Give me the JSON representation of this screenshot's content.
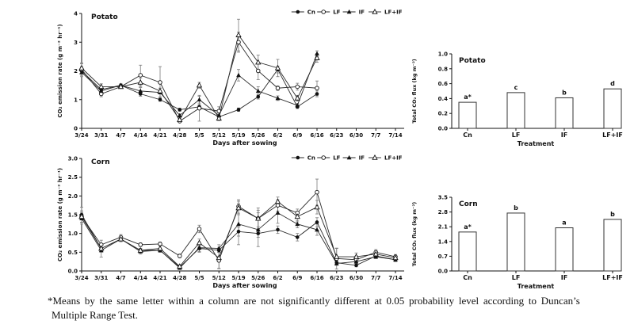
{
  "colors": {
    "background": "#ffffff",
    "text": "#111111",
    "axis": "#111111",
    "series_line": "#2a2a2a",
    "marker": "#111111",
    "error_bar": "#7a7a7a",
    "bar_fill": "#ffffff",
    "bar_stroke": "#333333"
  },
  "legend_items": [
    {
      "label": "Cn",
      "marker": "filled-circle"
    },
    {
      "label": "LF",
      "marker": "open-circle"
    },
    {
      "label": "IF",
      "marker": "filled-triangle"
    },
    {
      "label": "LF+IF",
      "marker": "open-triangle"
    }
  ],
  "footnote": {
    "line1": "*Means by the same letter within a column are not significantly different at 0.05 probability level according to Duncan’s",
    "line2": "Multiple Range Test."
  },
  "chart_data": [
    {
      "id": "potato-line",
      "type": "line",
      "title": "Potato",
      "xlabel": "Days after sowing",
      "ylabel": "CO₂ emission rate (g m⁻² hr⁻¹)",
      "ylim": [
        0,
        4
      ],
      "ytick_values": [
        0,
        1,
        2,
        3,
        4
      ],
      "ytick_labels": [
        "0",
        "1",
        "2",
        "3",
        "4"
      ],
      "categories": [
        "3/24",
        "3/31",
        "4/7",
        "4/14",
        "4/21",
        "4/28",
        "5/5",
        "5/12",
        "5/19",
        "5/26",
        "6/2",
        "6/9",
        "6/16",
        "6/23",
        "6/30",
        "7/7",
        "7/14"
      ],
      "legend_position": "top-right",
      "grid": false,
      "series": [
        {
          "name": "Cn",
          "marker": "filled-circle",
          "values": [
            2.0,
            1.35,
            1.5,
            1.2,
            1.0,
            0.65,
            0.75,
            0.4,
            0.65,
            1.1,
            2.05,
            0.75,
            1.2
          ],
          "errors": [
            0.15,
            0.08,
            0.05,
            0.08,
            0.06,
            0.05,
            0.08,
            0.05,
            0.06,
            0.08,
            0.12,
            0.06,
            0.1
          ]
        },
        {
          "name": "LF",
          "marker": "open-circle",
          "values": [
            2.05,
            1.2,
            1.45,
            1.85,
            1.6,
            0.25,
            0.7,
            0.6,
            3.0,
            2.0,
            1.4,
            1.45,
            1.4
          ],
          "errors": [
            0.2,
            0.1,
            0.05,
            0.35,
            0.55,
            0.05,
            0.45,
            0.15,
            0.35,
            0.3,
            0.08,
            0.12,
            0.25
          ]
        },
        {
          "name": "IF",
          "marker": "filled-triangle",
          "values": [
            1.95,
            1.3,
            1.5,
            1.3,
            1.25,
            0.45,
            1.0,
            0.45,
            1.85,
            1.3,
            1.05,
            0.8,
            2.6
          ],
          "errors": [
            0.15,
            0.08,
            0.05,
            0.12,
            0.15,
            0.05,
            0.12,
            0.1,
            0.2,
            0.15,
            0.08,
            0.06,
            0.1
          ]
        },
        {
          "name": "LF+IF",
          "marker": "open-triangle",
          "values": [
            2.1,
            1.45,
            1.45,
            1.6,
            1.3,
            0.3,
            1.5,
            0.35,
            3.25,
            2.3,
            2.1,
            1.05,
            2.45
          ],
          "errors": [
            0.18,
            0.1,
            0.05,
            0.15,
            0.1,
            0.05,
            0.1,
            0.08,
            0.55,
            0.25,
            0.3,
            0.1,
            0.15
          ]
        }
      ]
    },
    {
      "id": "potato-bar",
      "type": "bar",
      "title": "Potato",
      "xlabel": "Treatment",
      "ylabel": "Total CO₂ flux (kg m⁻²)",
      "ylim": [
        0,
        1.0
      ],
      "ytick_values": [
        0,
        0.2,
        0.4,
        0.6,
        0.8,
        1.0
      ],
      "ytick_labels": [
        "0.0",
        "0.2",
        "0.4",
        "0.6",
        "0.8",
        "1.0"
      ],
      "categories": [
        "Cn",
        "LF",
        "IF",
        "LF+IF"
      ],
      "values": [
        0.35,
        0.48,
        0.41,
        0.53
      ],
      "letters": [
        "a*",
        "c",
        "b",
        "d"
      ]
    },
    {
      "id": "corn-line",
      "type": "line",
      "title": "Corn",
      "xlabel": "Days after sowing",
      "ylabel": "CO₂ emission rate (g m⁻² hr⁻¹)",
      "ylim": [
        0,
        3
      ],
      "ytick_values": [
        0,
        0.5,
        1.0,
        1.5,
        2.0,
        2.5,
        3.0
      ],
      "ytick_labels": [
        "0.0",
        "0.5",
        "1.0",
        "1.5",
        "2.0",
        "2.5",
        "3.0"
      ],
      "categories": [
        "3/24",
        "3/31",
        "4/7",
        "4/14",
        "4/21",
        "4/28",
        "5/5",
        "5/12",
        "5/19",
        "5/26",
        "6/2",
        "6/9",
        "6/16",
        "6/23",
        "6/30",
        "7/7",
        "7/14"
      ],
      "legend_position": "top-right",
      "grid": false,
      "series": [
        {
          "name": "Cn",
          "marker": "filled-circle",
          "values": [
            1.5,
            0.6,
            0.85,
            0.55,
            0.55,
            0.1,
            0.6,
            0.55,
            1.05,
            1.0,
            1.1,
            0.9,
            1.3,
            0.22,
            0.15,
            0.4,
            0.3
          ],
          "errors": [
            0.2,
            0.08,
            0.05,
            0.05,
            0.05,
            0.03,
            0.08,
            0.05,
            0.12,
            0.1,
            0.1,
            0.1,
            0.12,
            0.05,
            0.04,
            0.05,
            0.04
          ]
        },
        {
          "name": "LF",
          "marker": "open-circle",
          "values": [
            1.45,
            0.7,
            0.9,
            0.7,
            0.72,
            0.4,
            1.12,
            0.28,
            1.72,
            1.4,
            1.75,
            1.55,
            2.1,
            0.33,
            0.3,
            0.5,
            0.38
          ],
          "errors": [
            0.15,
            0.12,
            0.07,
            0.05,
            0.05,
            0.05,
            0.1,
            0.22,
            0.18,
            0.28,
            0.15,
            0.1,
            0.35,
            0.28,
            0.1,
            0.07,
            0.06
          ]
        },
        {
          "name": "IF",
          "marker": "filled-triangle",
          "values": [
            1.4,
            0.55,
            0.85,
            0.52,
            0.55,
            0.08,
            0.62,
            0.6,
            1.25,
            1.1,
            1.55,
            1.25,
            1.1,
            0.2,
            0.25,
            0.38,
            0.3
          ],
          "errors": [
            0.15,
            0.18,
            0.07,
            0.07,
            0.05,
            0.03,
            0.12,
            0.1,
            0.55,
            0.45,
            0.28,
            0.1,
            0.15,
            0.05,
            0.05,
            0.05,
            0.05
          ]
        },
        {
          "name": "LF+IF",
          "marker": "open-triangle",
          "values": [
            1.45,
            0.6,
            0.85,
            0.55,
            0.6,
            0.12,
            0.75,
            0.35,
            1.68,
            1.4,
            1.85,
            1.45,
            1.7,
            0.38,
            0.38,
            0.45,
            0.35
          ],
          "errors": [
            0.15,
            0.1,
            0.07,
            0.05,
            0.07,
            0.04,
            0.1,
            0.28,
            0.18,
            0.22,
            0.12,
            0.14,
            0.18,
            0.22,
            0.1,
            0.08,
            0.06
          ]
        }
      ]
    },
    {
      "id": "corn-bar",
      "type": "bar",
      "title": "Corn",
      "xlabel": "Treatment",
      "ylabel": "Total CO₂ flux (kg m⁻²)",
      "ylim": [
        0,
        3.5
      ],
      "ytick_values": [
        0,
        0.7,
        1.4,
        2.1,
        2.8,
        3.5
      ],
      "ytick_labels": [
        "0.0",
        "0.7",
        "1.4",
        "2.1",
        "2.8",
        "3.5"
      ],
      "categories": [
        "Cn",
        "LF",
        "IF",
        "LF+IF"
      ],
      "values": [
        1.85,
        2.75,
        2.05,
        2.45
      ],
      "letters": [
        "a*",
        "b",
        "a",
        "b"
      ]
    }
  ]
}
